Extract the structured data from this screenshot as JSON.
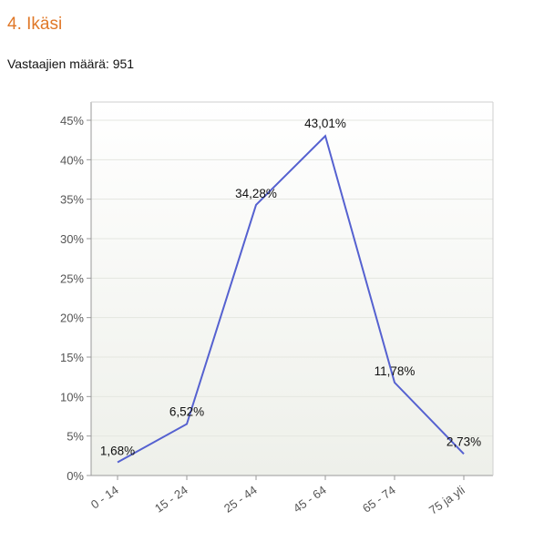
{
  "header": {
    "title": "4. Ikäsi",
    "respondents_label": "Vastaajien määrä:",
    "respondents_count": "951"
  },
  "colors": {
    "title": "#e07828",
    "line": "#5561d0",
    "plot_bg_top": "#ffffff",
    "plot_bg_bottom": "#eef0ea"
  },
  "chart_data": {
    "type": "line",
    "categories": [
      "0 - 14",
      "15 - 24",
      "25 - 44",
      "45 - 64",
      "65 - 74",
      "75 ja yli"
    ],
    "values": [
      1.68,
      6.52,
      34.28,
      43.01,
      11.78,
      2.73
    ],
    "data_labels": [
      "1,68%",
      "6,52%",
      "34,28%",
      "43,01%",
      "11,78%",
      "2,73%"
    ],
    "ylim": [
      0,
      45
    ],
    "yticks": [
      0,
      5,
      10,
      15,
      20,
      25,
      30,
      35,
      40,
      45
    ],
    "ytick_labels": [
      "0%",
      "5%",
      "10%",
      "15%",
      "20%",
      "25%",
      "30%",
      "35%",
      "40%",
      "45%"
    ],
    "grid": true,
    "legend": "none",
    "title": "",
    "xlabel": "",
    "ylabel": ""
  }
}
